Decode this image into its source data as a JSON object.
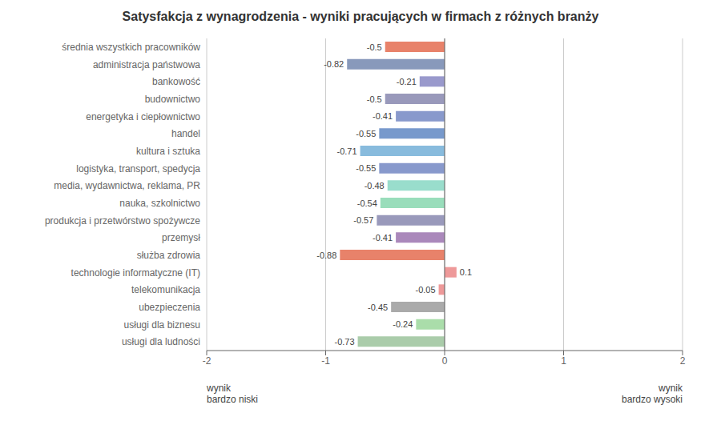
{
  "chart_data": {
    "type": "bar",
    "orientation": "horizontal",
    "title": "Satysfakcja z wynagrodzenia - wyniki pracujących w firmach z różnych branży",
    "categories": [
      "średnia wszystkich pracowników",
      "administracja państwowa",
      "bankowość",
      "budownictwo",
      "energetyka i ciepłownictwo",
      "handel",
      "kultura i sztuka",
      "logistyka, transport, spedycja",
      "media, wydawnictwa, reklama, PR",
      "nauka, szkolnictwo",
      "produkcja i przetwórstwo spożywcze",
      "przemysł",
      "służba zdrowia",
      "technologie informatyczne (IT)",
      "telekomunikacja",
      "ubezpieczenia",
      "usługi dla biznesu",
      "usługi dla ludności"
    ],
    "values": [
      -0.5,
      -0.82,
      -0.21,
      -0.5,
      -0.41,
      -0.55,
      -0.71,
      -0.55,
      -0.48,
      -0.54,
      -0.57,
      -0.41,
      -0.88,
      0.1,
      -0.05,
      -0.45,
      -0.24,
      -0.73
    ],
    "colors": [
      "#e8826a",
      "#8899bb",
      "#9999cc",
      "#9999bb",
      "#8899cc",
      "#7799cc",
      "#88bbdd",
      "#8899cc",
      "#99ddcc",
      "#99ddbb",
      "#9999bb",
      "#aa88bb",
      "#e8826a",
      "#ee9999",
      "#ee9999",
      "#aaaaaa",
      "#aaddaa",
      "#aaccaa"
    ],
    "xlim": [
      -2,
      2
    ],
    "xticks": [
      -2,
      -1,
      0,
      1,
      2
    ],
    "grid": true,
    "data_labels": true,
    "annotations": [
      "wynik\nbardzo niski",
      "wynik\nbardzo wysoki"
    ]
  }
}
